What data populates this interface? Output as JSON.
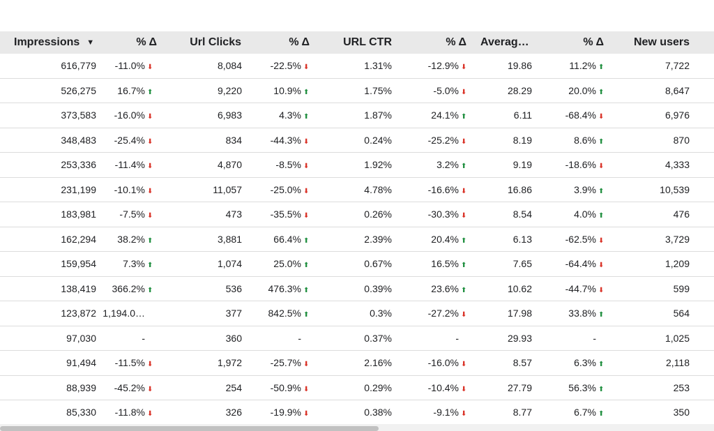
{
  "headers": {
    "impressions": "Impressions",
    "impressions_sort_icon": "sort-down-icon",
    "pct1": "% Δ",
    "url_clicks": "Url Clicks",
    "pct2": "% Δ",
    "url_ctr": "URL CTR",
    "pct3": "% Δ",
    "average": "Averag…",
    "pct4": "% Δ",
    "new_users": "New users"
  },
  "colors": {
    "up": "#1e8e3e",
    "down": "#d93025",
    "header_bg": "#e9e9e9"
  },
  "rows": [
    {
      "impressions": "616,779",
      "d1": "-11.0%",
      "d1dir": "down",
      "clicks": "8,084",
      "d2": "-22.5%",
      "d2dir": "down",
      "ctr": "1.31%",
      "d3": "-12.9%",
      "d3dir": "down",
      "avg": "19.86",
      "d4": "11.2%",
      "d4dir": "up",
      "users": "7,722"
    },
    {
      "impressions": "526,275",
      "d1": "16.7%",
      "d1dir": "up",
      "clicks": "9,220",
      "d2": "10.9%",
      "d2dir": "up",
      "ctr": "1.75%",
      "d3": "-5.0%",
      "d3dir": "down",
      "avg": "28.29",
      "d4": "20.0%",
      "d4dir": "up",
      "users": "8,647"
    },
    {
      "impressions": "373,583",
      "d1": "-16.0%",
      "d1dir": "down",
      "clicks": "6,983",
      "d2": "4.3%",
      "d2dir": "up",
      "ctr": "1.87%",
      "d3": "24.1%",
      "d3dir": "up",
      "avg": "6.11",
      "d4": "-68.4%",
      "d4dir": "down",
      "users": "6,976"
    },
    {
      "impressions": "348,483",
      "d1": "-25.4%",
      "d1dir": "down",
      "clicks": "834",
      "d2": "-44.3%",
      "d2dir": "down",
      "ctr": "0.24%",
      "d3": "-25.2%",
      "d3dir": "down",
      "avg": "8.19",
      "d4": "8.6%",
      "d4dir": "up",
      "users": "870"
    },
    {
      "impressions": "253,336",
      "d1": "-11.4%",
      "d1dir": "down",
      "clicks": "4,870",
      "d2": "-8.5%",
      "d2dir": "down",
      "ctr": "1.92%",
      "d3": "3.2%",
      "d3dir": "up",
      "avg": "9.19",
      "d4": "-18.6%",
      "d4dir": "down",
      "users": "4,333"
    },
    {
      "impressions": "231,199",
      "d1": "-10.1%",
      "d1dir": "down",
      "clicks": "11,057",
      "d2": "-25.0%",
      "d2dir": "down",
      "ctr": "4.78%",
      "d3": "-16.6%",
      "d3dir": "down",
      "avg": "16.86",
      "d4": "3.9%",
      "d4dir": "up",
      "users": "10,539"
    },
    {
      "impressions": "183,981",
      "d1": "-7.5%",
      "d1dir": "down",
      "clicks": "473",
      "d2": "-35.5%",
      "d2dir": "down",
      "ctr": "0.26%",
      "d3": "-30.3%",
      "d3dir": "down",
      "avg": "8.54",
      "d4": "4.0%",
      "d4dir": "up",
      "users": "476"
    },
    {
      "impressions": "162,294",
      "d1": "38.2%",
      "d1dir": "up",
      "clicks": "3,881",
      "d2": "66.4%",
      "d2dir": "up",
      "ctr": "2.39%",
      "d3": "20.4%",
      "d3dir": "up",
      "avg": "6.13",
      "d4": "-62.5%",
      "d4dir": "down",
      "users": "3,729"
    },
    {
      "impressions": "159,954",
      "d1": "7.3%",
      "d1dir": "up",
      "clicks": "1,074",
      "d2": "25.0%",
      "d2dir": "up",
      "ctr": "0.67%",
      "d3": "16.5%",
      "d3dir": "up",
      "avg": "7.65",
      "d4": "-64.4%",
      "d4dir": "down",
      "users": "1,209"
    },
    {
      "impressions": "138,419",
      "d1": "366.2%",
      "d1dir": "up",
      "clicks": "536",
      "d2": "476.3%",
      "d2dir": "up",
      "ctr": "0.39%",
      "d3": "23.6%",
      "d3dir": "up",
      "avg": "10.62",
      "d4": "-44.7%",
      "d4dir": "down",
      "users": "599"
    },
    {
      "impressions": "123,872",
      "d1": "1,194.0…",
      "d1dir": "none",
      "clicks": "377",
      "d2": "842.5%",
      "d2dir": "up",
      "ctr": "0.3%",
      "d3": "-27.2%",
      "d3dir": "down",
      "avg": "17.98",
      "d4": "33.8%",
      "d4dir": "up",
      "users": "564"
    },
    {
      "impressions": "97,030",
      "d1": "-",
      "d1dir": "none",
      "clicks": "360",
      "d2": "-",
      "d2dir": "none",
      "ctr": "0.37%",
      "d3": "-",
      "d3dir": "none",
      "avg": "29.93",
      "d4": "-",
      "d4dir": "none",
      "users": "1,025"
    },
    {
      "impressions": "91,494",
      "d1": "-11.5%",
      "d1dir": "down",
      "clicks": "1,972",
      "d2": "-25.7%",
      "d2dir": "down",
      "ctr": "2.16%",
      "d3": "-16.0%",
      "d3dir": "down",
      "avg": "8.57",
      "d4": "6.3%",
      "d4dir": "up",
      "users": "2,118"
    },
    {
      "impressions": "88,939",
      "d1": "-45.2%",
      "d1dir": "down",
      "clicks": "254",
      "d2": "-50.9%",
      "d2dir": "down",
      "ctr": "0.29%",
      "d3": "-10.4%",
      "d3dir": "down",
      "avg": "27.79",
      "d4": "56.3%",
      "d4dir": "up",
      "users": "253"
    },
    {
      "impressions": "85,330",
      "d1": "-11.8%",
      "d1dir": "down",
      "clicks": "326",
      "d2": "-19.9%",
      "d2dir": "down",
      "ctr": "0.38%",
      "d3": "-9.1%",
      "d3dir": "down",
      "avg": "8.77",
      "d4": "6.7%",
      "d4dir": "up",
      "users": "350"
    }
  ]
}
